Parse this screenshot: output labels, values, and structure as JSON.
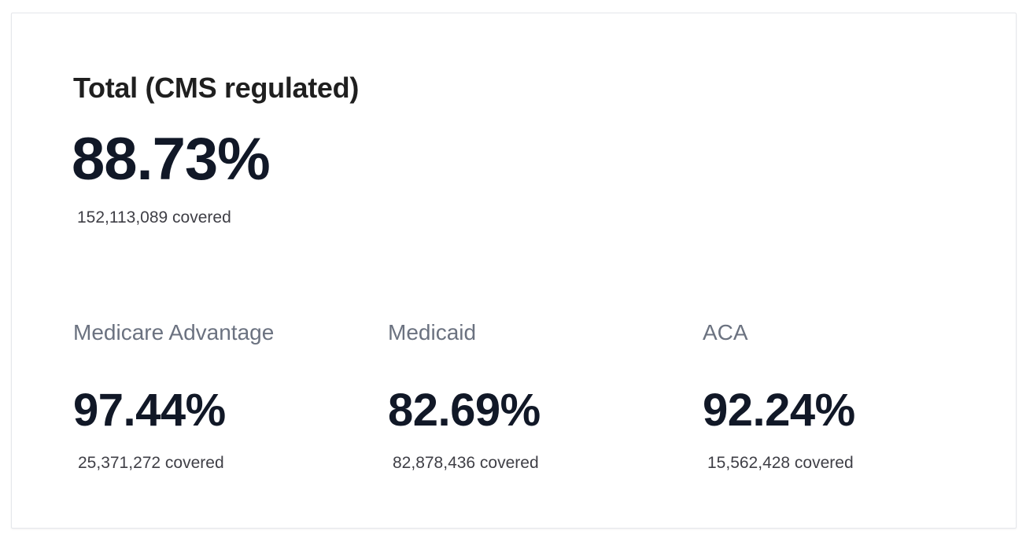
{
  "total": {
    "title": "Total (CMS regulated)",
    "percent": "88.73%",
    "covered": "152,113,089 covered"
  },
  "segments": [
    {
      "label": "Medicare Advantage",
      "percent": "97.44%",
      "covered": "25,371,272 covered"
    },
    {
      "label": "Medicaid",
      "percent": "82.69%",
      "covered": "82,878,436 covered"
    },
    {
      "label": "ACA",
      "percent": "92.24%",
      "covered": "15,562,428 covered"
    }
  ]
}
